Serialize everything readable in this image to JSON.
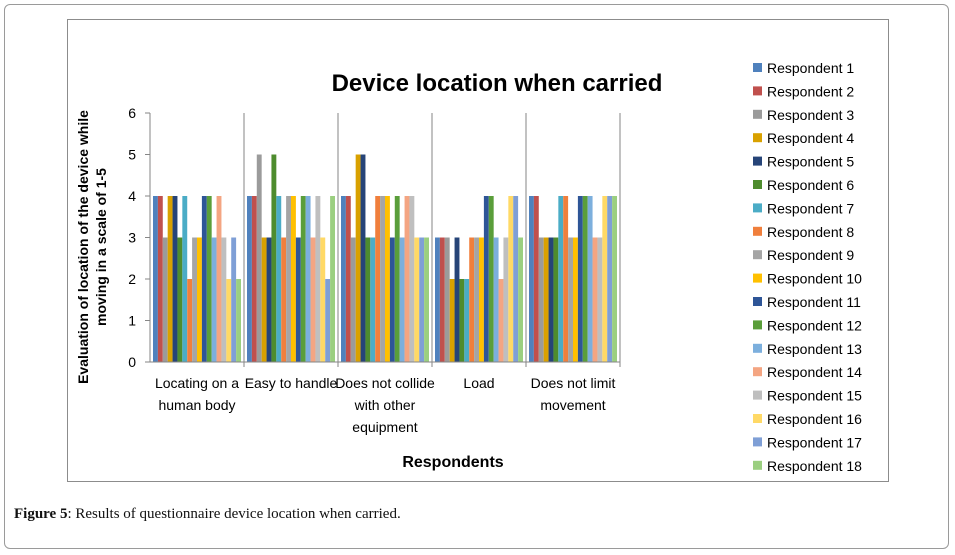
{
  "caption": {
    "label": "Figure 5",
    "text": ": Results of questionnaire device location when carried."
  },
  "chart_data": {
    "type": "bar",
    "title": "Device location when carried",
    "xlabel": "Respondents",
    "ylabel": "Evaluation of location of the device while moving in a scale of 1-5",
    "ylim": [
      0,
      6
    ],
    "yticks": [
      0,
      1,
      2,
      3,
      4,
      5,
      6
    ],
    "grid": false,
    "legend_position": "right",
    "categories": [
      [
        "Locating on a",
        "human body"
      ],
      [
        "Easy to handle"
      ],
      [
        "Does not collide",
        "with other",
        "equipment"
      ],
      [
        "Load"
      ],
      [
        "Does not limit",
        "movement"
      ]
    ],
    "series": [
      {
        "name": "Respondent 1",
        "color": "#4F81BD",
        "values": [
          4,
          4,
          4,
          3,
          4
        ]
      },
      {
        "name": "Respondent 2",
        "color": "#C0504D",
        "values": [
          4,
          4,
          4,
          3,
          4
        ]
      },
      {
        "name": "Respondent 3",
        "color": "#9B9B9B",
        "values": [
          3,
          5,
          3,
          3,
          3
        ]
      },
      {
        "name": "Respondent 4",
        "color": "#D9A100",
        "values": [
          4,
          3,
          5,
          2,
          3
        ]
      },
      {
        "name": "Respondent 5",
        "color": "#264478",
        "values": [
          4,
          3,
          5,
          3,
          3
        ]
      },
      {
        "name": "Respondent 6",
        "color": "#4E8C2E",
        "values": [
          3,
          5,
          3,
          2,
          3
        ]
      },
      {
        "name": "Respondent 7",
        "color": "#4BACC6",
        "values": [
          4,
          4,
          3,
          2,
          4
        ]
      },
      {
        "name": "Respondent 8",
        "color": "#F07F3C",
        "values": [
          2,
          3,
          4,
          3,
          4
        ]
      },
      {
        "name": "Respondent 9",
        "color": "#A5A5A5",
        "values": [
          3,
          4,
          4,
          3,
          3
        ]
      },
      {
        "name": "Respondent 10",
        "color": "#FFC000",
        "values": [
          3,
          4,
          4,
          3,
          3
        ]
      },
      {
        "name": "Respondent 11",
        "color": "#2E5597",
        "values": [
          4,
          3,
          3,
          4,
          4
        ]
      },
      {
        "name": "Respondent 12",
        "color": "#5A9E3A",
        "values": [
          4,
          4,
          4,
          4,
          4
        ]
      },
      {
        "name": "Respondent 13",
        "color": "#7CAFDD",
        "values": [
          3,
          4,
          3,
          3,
          4
        ]
      },
      {
        "name": "Respondent 14",
        "color": "#F4A582",
        "values": [
          4,
          3,
          4,
          2,
          3
        ]
      },
      {
        "name": "Respondent 15",
        "color": "#BFBFBF",
        "values": [
          3,
          4,
          4,
          3,
          3
        ]
      },
      {
        "name": "Respondent 16",
        "color": "#FFD966",
        "values": [
          2,
          3,
          3,
          4,
          4
        ]
      },
      {
        "name": "Respondent 17",
        "color": "#7F9FD6",
        "values": [
          3,
          2,
          3,
          4,
          4
        ]
      },
      {
        "name": "Respondent 18",
        "color": "#9BCF80",
        "values": [
          2,
          4,
          3,
          3,
          4
        ]
      }
    ]
  }
}
